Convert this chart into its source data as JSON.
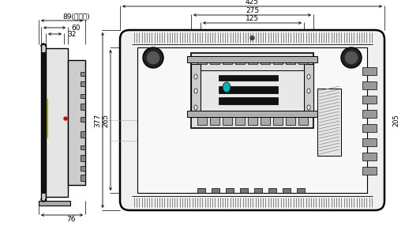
{
  "bg_color": "#ffffff",
  "lc": "#000000",
  "gray_fill": "#e8e8e8",
  "dark_fill": "#222222",
  "mid_fill": "#999999",
  "light_fill": "#f0f0f0",
  "teal_fill": "#00b5b0",
  "dimensions": {
    "d89": "89(含挂架)",
    "d60": "60",
    "d32": "32",
    "d425": "425",
    "d275": "275",
    "d125": "125",
    "d377": "377",
    "d265": "265",
    "d205": "205",
    "d76": "76"
  },
  "font_size": 6.5
}
